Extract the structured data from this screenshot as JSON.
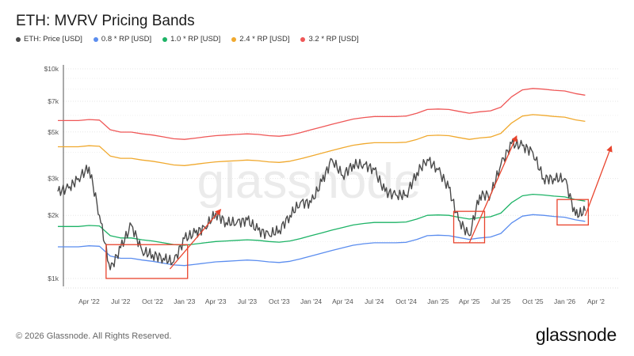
{
  "chart_data": {
    "type": "line",
    "title": "ETH: MVRV Pricing Bands",
    "y_scale": "log",
    "ylim": [
      1000,
      10000
    ],
    "y_ticks": [
      {
        "value": 1000,
        "label": "$1k"
      },
      {
        "value": 2000,
        "label": "$2k"
      },
      {
        "value": 3000,
        "label": "$3k"
      },
      {
        "value": 5000,
        "label": "$5k"
      },
      {
        "value": 7000,
        "label": "$7k"
      },
      {
        "value": 10000,
        "label": "$10k"
      }
    ],
    "x_ticks": [
      {
        "date": "2022-04-01",
        "label": "Apr '22"
      },
      {
        "date": "2022-07-01",
        "label": "Jul '22"
      },
      {
        "date": "2022-10-01",
        "label": "Oct '22"
      },
      {
        "date": "2023-01-01",
        "label": "Jan '23"
      },
      {
        "date": "2023-04-01",
        "label": "Apr '23"
      },
      {
        "date": "2023-07-01",
        "label": "Jul '23"
      },
      {
        "date": "2023-10-01",
        "label": "Oct '23"
      },
      {
        "date": "2024-01-01",
        "label": "Jan '24"
      },
      {
        "date": "2024-04-01",
        "label": "Apr '24"
      },
      {
        "date": "2024-07-01",
        "label": "Jul '24"
      },
      {
        "date": "2024-10-01",
        "label": "Oct '24"
      },
      {
        "date": "2025-01-01",
        "label": "Jan '25"
      },
      {
        "date": "2025-04-01",
        "label": "Apr '25"
      },
      {
        "date": "2025-07-01",
        "label": "Jul '25"
      },
      {
        "date": "2025-10-01",
        "label": "Oct '25"
      },
      {
        "date": "2026-01-01",
        "label": "Jan '26"
      },
      {
        "date": "2026-04-01",
        "label": "Apr '2"
      }
    ],
    "grid": "horizontal",
    "legend_placement": "top-left",
    "dates": [
      "2022-01",
      "2022-02",
      "2022-03",
      "2022-04",
      "2022-05",
      "2022-06",
      "2022-07",
      "2022-08",
      "2022-09",
      "2022-10",
      "2022-11",
      "2022-12",
      "2023-01",
      "2023-02",
      "2023-03",
      "2023-04",
      "2023-05",
      "2023-06",
      "2023-07",
      "2023-08",
      "2023-09",
      "2023-10",
      "2023-11",
      "2023-12",
      "2024-01",
      "2024-02",
      "2024-03",
      "2024-04",
      "2024-05",
      "2024-06",
      "2024-07",
      "2024-08",
      "2024-09",
      "2024-10",
      "2024-11",
      "2024-12",
      "2025-01",
      "2025-02",
      "2025-03",
      "2025-04",
      "2025-05",
      "2025-06",
      "2025-07",
      "2025-08",
      "2025-09",
      "2025-10",
      "2025-11",
      "2025-12",
      "2026-01",
      "2026-02",
      "2026-03"
    ],
    "price": [
      2600,
      2700,
      3000,
      3400,
      2000,
      1100,
      1400,
      1800,
      1350,
      1300,
      1250,
      1200,
      1550,
      1650,
      1750,
      2050,
      1850,
      1850,
      1900,
      1700,
      1620,
      1700,
      2000,
      2300,
      2300,
      2900,
      3700,
      3100,
      3500,
      3500,
      3300,
      2600,
      2500,
      2500,
      3200,
      3700,
      3300,
      2700,
      1900,
      1600,
      2500,
      2500,
      3500,
      4400,
      4300,
      4000,
      3000,
      3000,
      3000,
      2000,
      2100
    ],
    "realized_price": [
      1770,
      1770,
      1770,
      1790,
      1780,
      1600,
      1560,
      1560,
      1530,
      1510,
      1480,
      1450,
      1440,
      1460,
      1480,
      1500,
      1510,
      1520,
      1530,
      1520,
      1500,
      1490,
      1510,
      1550,
      1600,
      1650,
      1700,
      1750,
      1800,
      1830,
      1850,
      1850,
      1850,
      1860,
      1920,
      2000,
      2010,
      2000,
      1960,
      1920,
      1950,
      1970,
      2050,
      2300,
      2480,
      2520,
      2500,
      2470,
      2450,
      2380,
      2340
    ],
    "series": [
      {
        "name": "ETH: Price [USD]",
        "key": "price",
        "multiplier": 1,
        "color": "#4a4a4a"
      },
      {
        "name": "0.8 * RP [USD]",
        "key": "realized_price",
        "multiplier": 0.8,
        "color": "#5b8def"
      },
      {
        "name": "1.0 * RP [USD]",
        "key": "realized_price",
        "multiplier": 1.0,
        "color": "#1db366"
      },
      {
        "name": "2.4 * RP [USD]",
        "key": "realized_price",
        "multiplier": 2.4,
        "color": "#f0a92e"
      },
      {
        "name": "3.2 * RP [USD]",
        "key": "realized_price",
        "multiplier": 3.2,
        "color": "#ef5757"
      }
    ],
    "annotations": {
      "color": "#e8432c",
      "boxes": [
        {
          "from": "2022-05-20",
          "to": "2023-01-10",
          "low": 1000,
          "high": 1450
        },
        {
          "from": "2025-02-15",
          "to": "2025-05-15",
          "low": 1480,
          "high": 2090
        },
        {
          "from": "2025-12-10",
          "to": "2026-03-10",
          "low": 1800,
          "high": 2380
        }
      ],
      "arrows": [
        {
          "from_date": "2022-11-20",
          "from_price": 1110,
          "to_date": "2023-04-15",
          "to_price": 2130
        },
        {
          "from_date": "2025-04-01",
          "from_price": 1480,
          "to_date": "2025-08-15",
          "to_price": 4770
        },
        {
          "from_date": "2026-03-01",
          "from_price": 1990,
          "to_date": "2026-05-15",
          "to_price": 4260
        }
      ]
    }
  },
  "watermark": "glassnode",
  "footer": {
    "copyright": "© 2026 Glassnode. All Rights Reserved.",
    "brand": "glassnode"
  }
}
